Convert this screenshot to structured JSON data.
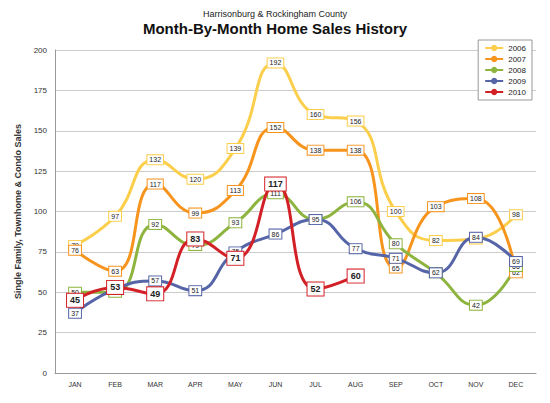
{
  "chart_data": {
    "type": "line",
    "title": "Month-By-Month Home Sales History",
    "subtitle": "Harrisonburg & Rockingham County",
    "y_label": "Single Family, Townhome & Condo Sales",
    "categories": [
      "JAN",
      "FEB",
      "MAR",
      "APR",
      "MAY",
      "JUN",
      "JUL",
      "AUG",
      "SEP",
      "OCT",
      "NOV",
      "DEC"
    ],
    "series": [
      {
        "name": "2006",
        "color": "#fbce4c",
        "values": [
          79,
          97,
          132,
          120,
          139,
          192,
          160,
          156,
          100,
          82,
          83,
          98
        ]
      },
      {
        "name": "2007",
        "color": "#f7941e",
        "values": [
          76,
          63,
          117,
          99,
          113,
          152,
          138,
          138,
          65,
          103,
          108,
          62
        ]
      },
      {
        "name": "2008",
        "color": "#8db43e",
        "values": [
          50,
          50,
          92,
          79,
          93,
          111,
          95,
          106,
          80,
          62,
          42,
          66
        ]
      },
      {
        "name": "2009",
        "color": "#5565a7",
        "values": [
          37,
          52,
          57,
          51,
          75,
          86,
          95,
          77,
          71,
          62,
          84,
          69
        ]
      },
      {
        "name": "2010",
        "color": "#d32027",
        "marker": "circle",
        "values": [
          45,
          53,
          49,
          83,
          71,
          117,
          52,
          60,
          null,
          null,
          null,
          null
        ]
      }
    ],
    "ylim": [
      0,
      200
    ],
    "yticks": [
      0,
      25,
      50,
      75,
      100,
      125,
      150,
      175,
      200
    ],
    "grid": true,
    "legend": "top-right",
    "data_labels": true
  }
}
